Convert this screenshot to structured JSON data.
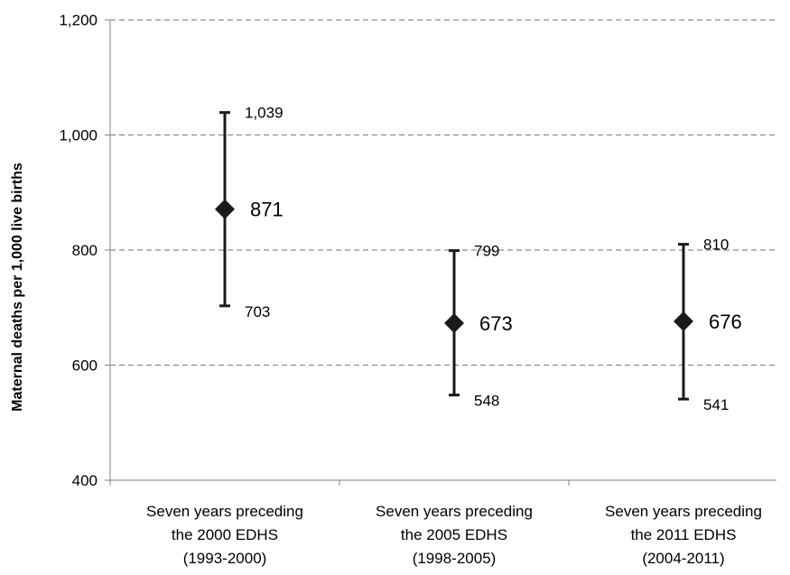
{
  "chart_data": {
    "type": "scatter",
    "title": "",
    "xlabel": "",
    "ylabel": "Maternal deaths per 1,000 live births",
    "ylim": [
      400,
      1200
    ],
    "y_ticks": [
      400,
      600,
      800,
      1000,
      1200
    ],
    "y_tick_labels": [
      "400",
      "600",
      "800",
      "1,000",
      "1,200"
    ],
    "grid": "horizontal dashed",
    "categories": [
      [
        "Seven years preceding",
        "the 2000 EDHS",
        "(1993-2000)"
      ],
      [
        "Seven years preceding",
        "the 2005 EDHS",
        "(1998-2005)"
      ],
      [
        "Seven years preceding",
        "the 2011 EDHS",
        "(2004-2011)"
      ]
    ],
    "points": [
      {
        "estimate": 871,
        "lower": 703,
        "upper": 1039,
        "estimate_label": "871",
        "lower_label": "703",
        "upper_label": "1,039"
      },
      {
        "estimate": 673,
        "lower": 548,
        "upper": 799,
        "estimate_label": "673",
        "lower_label": "548",
        "upper_label": "799"
      },
      {
        "estimate": 676,
        "lower": 541,
        "upper": 810,
        "estimate_label": "676",
        "lower_label": "541",
        "upper_label": "810"
      }
    ],
    "colors": {
      "marker": "#1a1a1a",
      "grid": "#8c8c8c",
      "axis": "#808080"
    }
  }
}
